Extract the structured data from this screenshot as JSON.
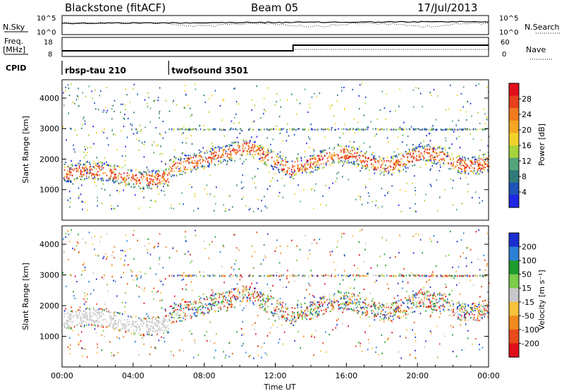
{
  "header": {
    "station": "Blackstone (fitACF)",
    "beam": "Beam 05",
    "date": "17/Jul/2013"
  },
  "params": {
    "nsky_label": "N.Sky",
    "nsearch_label": "N.Search",
    "freq_label_line1": "Freq.",
    "freq_label_line2": "[MHz]",
    "nave_label": "Nave",
    "cpid_label": "CPID",
    "noise_ticks": [
      "10^5",
      "10^0"
    ],
    "freq_ticks": [
      "18",
      "8"
    ],
    "nave_ticks": [
      "60",
      "0"
    ],
    "cpid_segments": [
      {
        "name": "rbsp-tau 210",
        "start_hour": 0
      },
      {
        "name": "twofsound 3501",
        "start_hour": 6
      }
    ]
  },
  "chart_data": [
    {
      "type": "heatmap",
      "panel": "power",
      "ylabel": "Slant Range [km]",
      "xlabel": "",
      "xlim": [
        0,
        24
      ],
      "ylim": [
        0,
        4600
      ],
      "yticks": [
        1000,
        2000,
        3000,
        4000
      ],
      "colorbar": {
        "title": "Power [dB]",
        "tick_labels": [
          "4",
          "8",
          "12",
          "16",
          "20",
          "24",
          "28"
        ],
        "colors": [
          "#1e28e6",
          "#1f52b8",
          "#2f7a7a",
          "#55a37a",
          "#a6d43a",
          "#f2d22a",
          "#f5a623",
          "#f07a1e",
          "#e8401c",
          "#e0101a"
        ]
      },
      "features": [
        {
          "hours": [
            0,
            6
          ],
          "range_km": [
            1300,
            1700
          ],
          "description": "strong echo band"
        },
        {
          "hours": [
            6,
            10.5
          ],
          "range_km": [
            1600,
            2500
          ],
          "description": "rising band"
        },
        {
          "hours": [
            13,
            24
          ],
          "range_km": [
            1500,
            2600
          ],
          "description": "broad scatter"
        },
        {
          "hours": [
            6,
            24
          ],
          "range_km": [
            3000,
            3000
          ],
          "description": "ground scatter line"
        }
      ]
    },
    {
      "type": "heatmap",
      "panel": "velocity",
      "ylabel": "Slant Range [km]",
      "xlabel": "Time UT",
      "xlim": [
        0,
        24
      ],
      "ylim": [
        0,
        4600
      ],
      "yticks": [
        1000,
        2000,
        3000,
        4000
      ],
      "xtick_labels": [
        "00:00",
        "04:00",
        "08:00",
        "12:00",
        "16:00",
        "20:00",
        "00:00"
      ],
      "colorbar": {
        "title": "Velocity [m s⁻¹]",
        "tick_labels": [
          "200",
          "100",
          "50",
          "15",
          "-15",
          "-50",
          "-100",
          "-200"
        ],
        "colors": [
          "#1a2fd0",
          "#2d7fd6",
          "#1e9a2e",
          "#7ccc4a",
          "#c8c8c8",
          "#f5c23a",
          "#f08a1e",
          "#e84a1c",
          "#e0101a"
        ]
      }
    }
  ],
  "styles": {
    "frame_color": "#000000",
    "background": "#ffffff",
    "ground_scatter_color": "#c8c8c8"
  }
}
